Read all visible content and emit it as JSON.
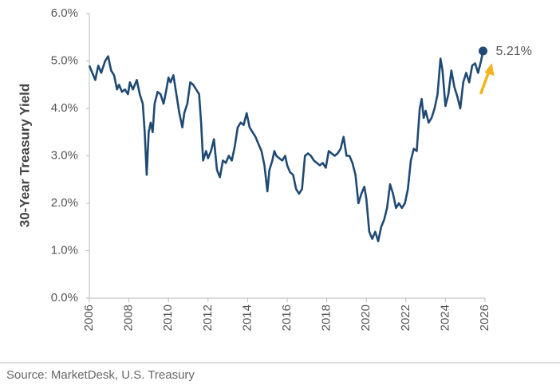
{
  "chart_data": {
    "type": "line",
    "ylabel": "30-Year Treasury Yield",
    "source": "Source: MarketDesk, U.S. Treasury",
    "annotation": "5.21%",
    "color": "#1f4a73",
    "annotation_arrow_color": "#f5b21a",
    "xlim": [
      2006,
      2026
    ],
    "xticks": [
      2006,
      2008,
      2010,
      2012,
      2014,
      2016,
      2018,
      2020,
      2022,
      2024,
      2026
    ],
    "ylim": [
      0,
      6
    ],
    "yticks": [
      {
        "value": 0,
        "label": "0.0%"
      },
      {
        "value": 1,
        "label": "1.0%"
      },
      {
        "value": 2,
        "label": "2.0%"
      },
      {
        "value": 3,
        "label": "3.0%"
      },
      {
        "value": 4,
        "label": "4.0%"
      },
      {
        "value": 5,
        "label": "5.0%"
      },
      {
        "value": 6,
        "label": "6.0%"
      }
    ],
    "grid": false,
    "x": [
      2006.0,
      2006.15,
      2006.3,
      2006.45,
      2006.6,
      2006.8,
      2006.95,
      2007.1,
      2007.25,
      2007.4,
      2007.5,
      2007.65,
      2007.8,
      2007.95,
      2008.05,
      2008.2,
      2008.4,
      2008.55,
      2008.7,
      2008.8,
      2008.9,
      2009.0,
      2009.1,
      2009.2,
      2009.3,
      2009.45,
      2009.6,
      2009.75,
      2009.85,
      2010.0,
      2010.1,
      2010.25,
      2010.4,
      2010.55,
      2010.7,
      2010.8,
      2010.95,
      2011.1,
      2011.25,
      2011.4,
      2011.55,
      2011.65,
      2011.75,
      2011.9,
      2012.0,
      2012.15,
      2012.3,
      2012.45,
      2012.6,
      2012.75,
      2012.9,
      2013.05,
      2013.2,
      2013.35,
      2013.5,
      2013.65,
      2013.8,
      2013.95,
      2014.1,
      2014.25,
      2014.4,
      2014.55,
      2014.7,
      2014.85,
      2015.0,
      2015.1,
      2015.25,
      2015.35,
      2015.45,
      2015.6,
      2015.75,
      2015.9,
      2016.0,
      2016.15,
      2016.3,
      2016.45,
      2016.6,
      2016.75,
      2016.9,
      2017.05,
      2017.2,
      2017.35,
      2017.5,
      2017.65,
      2017.8,
      2017.95,
      2018.1,
      2018.25,
      2018.4,
      2018.55,
      2018.7,
      2018.85,
      2019.0,
      2019.15,
      2019.3,
      2019.45,
      2019.6,
      2019.75,
      2019.9,
      2020.0,
      2020.15,
      2020.3,
      2020.45,
      2020.6,
      2020.75,
      2020.9,
      2021.05,
      2021.2,
      2021.35,
      2021.5,
      2021.65,
      2021.8,
      2021.95,
      2022.1,
      2022.25,
      2022.4,
      2022.55,
      2022.7,
      2022.8,
      2022.9,
      2023.0,
      2023.15,
      2023.3,
      2023.45,
      2023.6,
      2023.75,
      2023.85,
      2024.0,
      2024.15,
      2024.3,
      2024.45,
      2024.6,
      2024.75,
      2024.9,
      2025.05,
      2025.2,
      2025.35,
      2025.5,
      2025.65,
      2025.8,
      2025.9
    ],
    "values": [
      4.9,
      4.75,
      4.6,
      4.9,
      4.75,
      5.0,
      5.1,
      4.8,
      4.7,
      4.4,
      4.5,
      4.35,
      4.4,
      4.3,
      4.55,
      4.4,
      4.6,
      4.3,
      4.1,
      3.5,
      2.6,
      3.5,
      3.7,
      3.5,
      4.1,
      4.35,
      4.3,
      4.1,
      4.3,
      4.65,
      4.55,
      4.7,
      4.3,
      3.9,
      3.6,
      3.9,
      4.1,
      4.55,
      4.5,
      4.4,
      4.3,
      3.7,
      2.9,
      3.1,
      2.95,
      3.1,
      3.35,
      2.7,
      2.55,
      2.9,
      2.85,
      3.0,
      2.9,
      3.2,
      3.6,
      3.7,
      3.65,
      3.9,
      3.6,
      3.5,
      3.4,
      3.25,
      3.1,
      2.8,
      2.25,
      2.7,
      2.9,
      3.1,
      3.0,
      2.95,
      2.9,
      3.0,
      2.8,
      2.65,
      2.6,
      2.3,
      2.2,
      2.3,
      3.0,
      3.05,
      3.0,
      2.9,
      2.85,
      2.8,
      2.85,
      2.75,
      3.1,
      3.05,
      3.0,
      3.05,
      3.15,
      3.4,
      3.0,
      3.0,
      2.85,
      2.6,
      2.0,
      2.2,
      2.35,
      2.1,
      1.4,
      1.25,
      1.4,
      1.2,
      1.5,
      1.65,
      1.9,
      2.4,
      2.2,
      1.9,
      2.0,
      1.9,
      2.0,
      2.3,
      2.9,
      3.15,
      3.1,
      4.0,
      4.2,
      3.8,
      3.95,
      3.7,
      3.8,
      4.0,
      4.3,
      5.05,
      4.8,
      4.05,
      4.3,
      4.8,
      4.45,
      4.25,
      4.0,
      4.55,
      4.75,
      4.55,
      4.9,
      4.95,
      4.75,
      5.0,
      5.21
    ]
  }
}
